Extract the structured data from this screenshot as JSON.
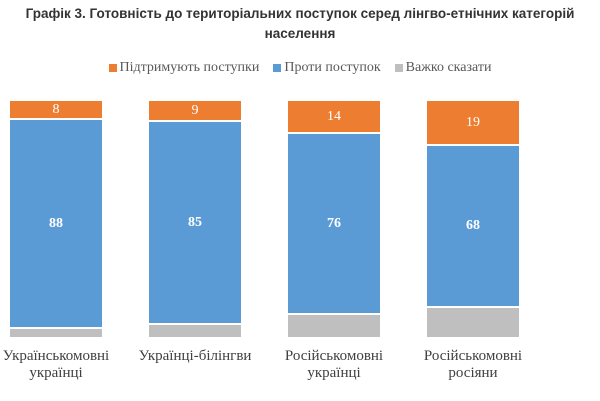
{
  "chart_data": {
    "type": "stacked-bar",
    "title": "Графік 3. Готовність до територіальних поступок серед лінгво-етнічних категорій населення",
    "categories": [
      "Українськомовні українці",
      "Українці-білінгви",
      "Російськомовні українці",
      "Російськомовні росіяни"
    ],
    "series": [
      {
        "name": "Підтримують поступки",
        "color": "#ED7D31",
        "values": [
          8,
          9,
          14,
          19
        ]
      },
      {
        "name": "Проти поступок",
        "color": "#5B9BD5",
        "values": [
          88,
          85,
          76,
          68
        ]
      },
      {
        "name": "Важко сказати",
        "color": "#BFBFBF",
        "values": [
          4,
          6,
          10,
          13
        ]
      }
    ]
  }
}
